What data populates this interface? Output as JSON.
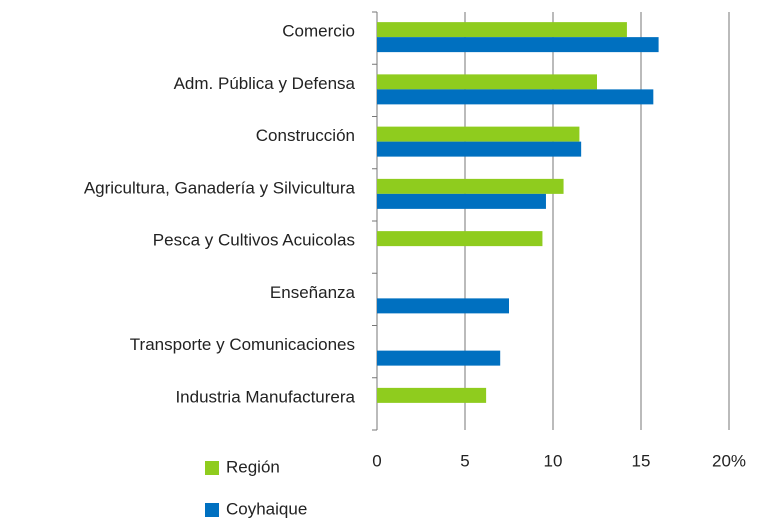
{
  "chart_data": {
    "type": "bar",
    "orientation": "horizontal",
    "categories": [
      "Comercio",
      "Adm. Pública y Defensa",
      "Construcción",
      "Agricultura, Ganadería y Silvicultura",
      "Pesca y Cultivos Acuicolas",
      "Enseñanza",
      "Transporte y Comunicaciones",
      "Industria Manufacturera"
    ],
    "series": [
      {
        "name": "Región",
        "color": "#8fcc1e",
        "values": [
          14.2,
          12.5,
          11.5,
          10.6,
          9.4,
          null,
          null,
          6.2
        ]
      },
      {
        "name": "Coyhaique",
        "color": "#0070c0",
        "values": [
          16.0,
          15.7,
          11.6,
          9.6,
          null,
          7.5,
          7.0,
          null
        ]
      }
    ],
    "xlim": [
      0,
      20
    ],
    "xticks": [
      0,
      5,
      10,
      15,
      {
        "value": 20,
        "label": "20%"
      }
    ],
    "grid": true,
    "legend": "bottom-left"
  }
}
